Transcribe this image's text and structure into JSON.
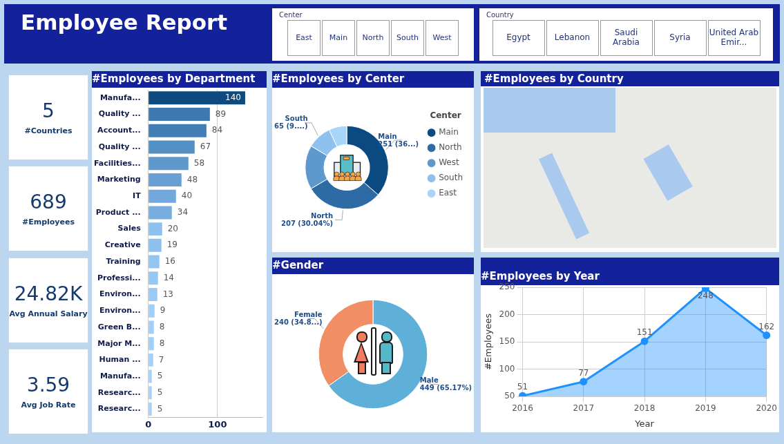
{
  "chart_data": [
    {
      "type": "other",
      "title": "Employee Report"
    },
    {
      "type": "other",
      "title": "Center",
      "categories": [
        "East",
        "Main",
        "North",
        "South",
        "West"
      ]
    },
    {
      "type": "other",
      "title": "Country",
      "categories": [
        "Egypt",
        "Lebanon",
        "Saudi Arabia",
        "Syria",
        "United Arab Emir..."
      ]
    },
    {
      "type": "other",
      "title": "#Countries",
      "annotations": [
        "5"
      ]
    },
    {
      "type": "other",
      "title": "#Employees",
      "annotations": [
        "689"
      ]
    },
    {
      "type": "other",
      "title": "Avg Annual Salary",
      "annotations": [
        "24.82K"
      ]
    },
    {
      "type": "other",
      "title": "Avg Job Rate",
      "annotations": [
        "3.59"
      ]
    },
    {
      "type": "bar",
      "title": "#Employees by Department",
      "orientation": "horizontal",
      "categories": [
        "Manufa...",
        "Quality ...",
        "Account...",
        "Quality ...",
        "Facilities...",
        "Marketing",
        "IT",
        "Product ...",
        "Sales",
        "Creative",
        "Training",
        "Professi...",
        "Environ...",
        "Environ...",
        "Green B...",
        "Major M...",
        "Human ...",
        "Manufa...",
        "Researc...",
        "Researc..."
      ],
      "values": [
        140,
        89,
        84,
        67,
        58,
        48,
        40,
        34,
        20,
        19,
        16,
        14,
        13,
        9,
        8,
        8,
        7,
        5,
        5,
        5
      ],
      "colors": [
        "#0d4a7e",
        "#3f78b0",
        "#437db5",
        "#5590c5",
        "#5e98cd",
        "#689fd5",
        "#72a8dc",
        "#78ade0",
        "#8ec0ee",
        "#8fc1ef",
        "#94c5f1",
        "#97c8f3",
        "#99c9f4",
        "#9fcef7",
        "#a0cff8",
        "#a0cff8",
        "#a2d0f9",
        "#a5d2fb",
        "#a5d2fb",
        "#a5d2fb"
      ],
      "xlim": [
        0,
        165
      ],
      "xticks": [
        0,
        100
      ],
      "grid": "x",
      "data_labels": true
    },
    {
      "type": "donut",
      "title": "#Employees by Center",
      "categories": [
        "Main",
        "North",
        "West",
        "South",
        "East"
      ],
      "values": [
        251,
        207,
        118,
        65,
        48
      ],
      "colors": [
        "#0b4a80",
        "#2e6aa3",
        "#5e98cd",
        "#8fc1ef",
        "#a9d5fb"
      ],
      "value_labels": [
        "251 (36...)",
        "207 (30.04%)",
        null,
        "65 (9....)",
        null
      ],
      "legend": "right",
      "legend_title": "Center"
    },
    {
      "type": "other",
      "title": "#Employees by Country"
    },
    {
      "type": "donut",
      "title": "#Gender",
      "categories": [
        "Male",
        "Female"
      ],
      "values": [
        449,
        240
      ],
      "colors": [
        "#5fb0d8",
        "#f28e63"
      ],
      "value_labels": [
        "449 (65.17%)",
        "240 (34.8...)"
      ]
    },
    {
      "type": "area",
      "title": "#Employees by Year",
      "categories": [
        "2016",
        "2017",
        "2018",
        "2019",
        "2020"
      ],
      "values": [
        51,
        77,
        151,
        248,
        162
      ],
      "color": "#1e90ff",
      "ylim": [
        50,
        250
      ],
      "yticks": [
        50,
        100,
        150,
        200,
        250
      ],
      "xlabel": "Year",
      "ylabel": "#Employees",
      "grid": true,
      "marker": "circle",
      "data_labels": true
    }
  ]
}
